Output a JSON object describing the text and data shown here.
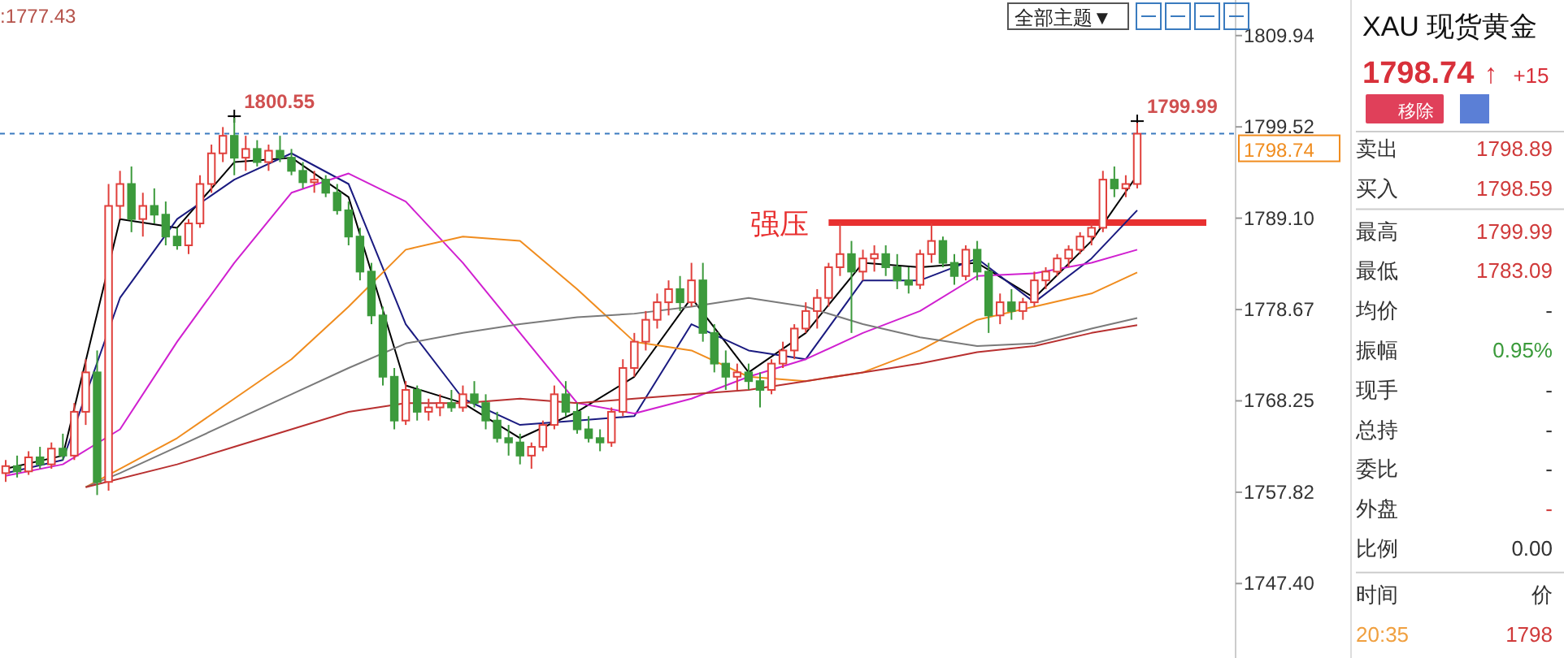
{
  "chart_data": [
    {
      "type": "candlestick",
      "categories": [
        null,
        null,
        null,
        null,
        null,
        null,
        null,
        null,
        null,
        null,
        null,
        null,
        null,
        null,
        null,
        null,
        null,
        null,
        null,
        null,
        null,
        null,
        null,
        null,
        null,
        null,
        null,
        null,
        null,
        null,
        null,
        null,
        null,
        null,
        null,
        null,
        null,
        null,
        null,
        null,
        null,
        null,
        null,
        null,
        null,
        null,
        null,
        null,
        null,
        null,
        null,
        null,
        null,
        null,
        null,
        null,
        null,
        null,
        null,
        null,
        null,
        null,
        null,
        null,
        null,
        null,
        null,
        null,
        null,
        null,
        null,
        null,
        null,
        null,
        null,
        null,
        null,
        null,
        null,
        null,
        null,
        null,
        null,
        null,
        null,
        null,
        null,
        null,
        null,
        null,
        null,
        null,
        null,
        null,
        null,
        null,
        null,
        null,
        null,
        null
      ],
      "ohlc": [
        [
          1760.0,
          1761.5,
          1759.0,
          1760.8
        ],
        [
          1760.8,
          1762.0,
          1759.5,
          1760.2
        ],
        [
          1760.2,
          1762.5,
          1759.8,
          1761.8
        ],
        [
          1761.8,
          1763.0,
          1760.5,
          1761.0
        ],
        [
          1761.0,
          1763.5,
          1760.5,
          1762.8
        ],
        [
          1762.8,
          1764.5,
          1761.5,
          1762.0
        ],
        [
          1762.0,
          1768.0,
          1761.5,
          1767.0
        ],
        [
          1767.0,
          1773.0,
          1765.5,
          1771.5
        ],
        [
          1771.5,
          1774.0,
          1757.5,
          1759.0
        ],
        [
          1759.0,
          1793.0,
          1758.0,
          1790.5
        ],
        [
          1790.5,
          1794.5,
          1789.0,
          1793.0
        ],
        [
          1793.0,
          1795.0,
          1787.5,
          1789.0
        ],
        [
          1789.0,
          1792.0,
          1787.0,
          1790.5
        ],
        [
          1790.5,
          1792.5,
          1788.5,
          1789.5
        ],
        [
          1789.5,
          1791.0,
          1786.0,
          1787.0
        ],
        [
          1787.0,
          1788.0,
          1785.5,
          1786.0
        ],
        [
          1786.0,
          1789.0,
          1785.0,
          1788.5
        ],
        [
          1788.5,
          1794.0,
          1788.0,
          1793.0
        ],
        [
          1793.0,
          1797.5,
          1792.0,
          1796.5
        ],
        [
          1796.5,
          1799.5,
          1795.5,
          1798.5
        ],
        [
          1798.5,
          1800.55,
          1794.0,
          1796.0
        ],
        [
          1796.0,
          1798.5,
          1794.5,
          1797.0
        ],
        [
          1797.0,
          1798.0,
          1795.0,
          1795.5
        ],
        [
          1795.5,
          1797.5,
          1794.5,
          1796.8
        ],
        [
          1796.8,
          1798.5,
          1795.5,
          1796.0
        ],
        [
          1796.0,
          1797.0,
          1794.0,
          1794.5
        ],
        [
          1794.5,
          1795.5,
          1792.5,
          1793.2
        ],
        [
          1793.2,
          1794.5,
          1792.0,
          1793.5
        ],
        [
          1793.5,
          1794.0,
          1791.5,
          1792.0
        ],
        [
          1792.0,
          1793.0,
          1789.5,
          1790.0
        ],
        [
          1790.0,
          1791.0,
          1786.0,
          1787.0
        ],
        [
          1787.0,
          1788.0,
          1782.0,
          1783.0
        ],
        [
          1783.0,
          1784.0,
          1777.0,
          1778.0
        ],
        [
          1778.0,
          1779.0,
          1770.0,
          1771.0
        ],
        [
          1771.0,
          1772.0,
          1765.0,
          1766.0
        ],
        [
          1766.0,
          1770.5,
          1765.5,
          1769.5
        ],
        [
          1769.5,
          1770.0,
          1766.0,
          1767.0
        ],
        [
          1767.0,
          1768.5,
          1766.0,
          1767.5
        ],
        [
          1767.5,
          1769.0,
          1766.5,
          1768.0
        ],
        [
          1768.0,
          1769.5,
          1767.0,
          1767.5
        ],
        [
          1767.5,
          1770.0,
          1767.0,
          1769.0
        ],
        [
          1769.0,
          1770.5,
          1767.5,
          1768.0
        ],
        [
          1768.0,
          1769.0,
          1765.0,
          1766.0
        ],
        [
          1766.0,
          1767.0,
          1763.5,
          1764.0
        ],
        [
          1764.0,
          1765.5,
          1762.0,
          1763.5
        ],
        [
          1763.5,
          1764.5,
          1761.0,
          1762.0
        ],
        [
          1762.0,
          1763.5,
          1760.5,
          1763.0
        ],
        [
          1763.0,
          1766.0,
          1762.5,
          1765.5
        ],
        [
          1765.5,
          1770.0,
          1765.0,
          1769.0
        ],
        [
          1769.0,
          1770.5,
          1766.5,
          1767.0
        ],
        [
          1767.0,
          1768.0,
          1764.5,
          1765.0
        ],
        [
          1765.0,
          1766.5,
          1763.5,
          1764.0
        ],
        [
          1764.0,
          1765.0,
          1762.5,
          1763.5
        ],
        [
          1763.5,
          1767.5,
          1763.0,
          1767.0
        ],
        [
          1767.0,
          1773.0,
          1766.5,
          1772.0
        ],
        [
          1772.0,
          1776.0,
          1771.0,
          1775.0
        ],
        [
          1775.0,
          1778.5,
          1774.0,
          1777.5
        ],
        [
          1777.5,
          1780.5,
          1776.5,
          1779.5
        ],
        [
          1779.5,
          1782.0,
          1778.0,
          1781.0
        ],
        [
          1781.0,
          1782.5,
          1778.5,
          1779.5
        ],
        [
          1779.5,
          1784.0,
          1779.0,
          1782.0
        ],
        [
          1782.0,
          1784.0,
          1775.0,
          1776.0
        ],
        [
          1776.0,
          1777.0,
          1771.5,
          1772.5
        ],
        [
          1772.5,
          1774.0,
          1769.5,
          1771.0
        ],
        [
          1771.0,
          1772.5,
          1769.5,
          1771.5
        ],
        [
          1771.5,
          1772.5,
          1769.5,
          1770.5
        ],
        [
          1770.5,
          1771.5,
          1767.5,
          1769.5
        ],
        [
          1769.5,
          1773.0,
          1769.0,
          1772.5
        ],
        [
          1772.5,
          1775.0,
          1772.0,
          1774.0
        ],
        [
          1774.0,
          1777.0,
          1773.0,
          1776.5
        ],
        [
          1776.5,
          1779.5,
          1776.0,
          1778.5
        ],
        [
          1778.5,
          1781.0,
          1776.5,
          1780.0
        ],
        [
          1780.0,
          1784.0,
          1779.0,
          1783.5
        ],
        [
          1783.5,
          1788.5,
          1782.5,
          1785.0
        ],
        [
          1785.0,
          1786.5,
          1776.0,
          1783.0
        ],
        [
          1783.0,
          1785.5,
          1782.0,
          1784.5
        ],
        [
          1784.5,
          1786.0,
          1783.0,
          1785.0
        ],
        [
          1785.0,
          1786.0,
          1782.5,
          1783.5
        ],
        [
          1783.5,
          1785.0,
          1781.0,
          1782.0
        ],
        [
          1782.0,
          1783.5,
          1780.5,
          1781.5
        ],
        [
          1781.5,
          1785.5,
          1781.0,
          1785.0
        ],
        [
          1785.0,
          1788.5,
          1784.0,
          1786.5
        ],
        [
          1786.5,
          1787.0,
          1783.5,
          1784.0
        ],
        [
          1784.0,
          1785.0,
          1781.5,
          1782.5
        ],
        [
          1782.5,
          1786.0,
          1782.0,
          1785.5
        ],
        [
          1785.5,
          1786.5,
          1782.0,
          1783.0
        ],
        [
          1783.0,
          1784.0,
          1776.0,
          1778.0
        ],
        [
          1778.0,
          1780.5,
          1777.0,
          1779.5
        ],
        [
          1779.5,
          1781.0,
          1777.5,
          1778.5
        ],
        [
          1778.5,
          1780.0,
          1777.5,
          1779.5
        ],
        [
          1779.5,
          1783.0,
          1779.0,
          1782.0
        ],
        [
          1782.0,
          1783.5,
          1781.0,
          1783.0
        ],
        [
          1783.0,
          1785.0,
          1782.5,
          1784.5
        ],
        [
          1784.5,
          1786.0,
          1783.5,
          1785.5
        ],
        [
          1785.5,
          1787.5,
          1785.0,
          1787.0
        ],
        [
          1787.0,
          1788.5,
          1786.0,
          1788.0
        ],
        [
          1788.0,
          1794.5,
          1787.5,
          1793.5
        ],
        [
          1793.5,
          1795.0,
          1791.5,
          1792.5
        ],
        [
          1792.5,
          1794.0,
          1791.5,
          1793.0
        ],
        [
          1793.0,
          1799.99,
          1792.5,
          1798.74
        ]
      ],
      "series": [
        {
          "type": "line",
          "color": "#000000",
          "values": [
            1760.5,
            null,
            null,
            null,
            null,
            1762,
            null,
            null,
            null,
            null,
            1789,
            null,
            null,
            null,
            null,
            1788,
            null,
            null,
            null,
            null,
            1795.5,
            null,
            null,
            null,
            null,
            1796,
            null,
            null,
            null,
            null,
            1791.5,
            null,
            null,
            null,
            null,
            1770,
            null,
            null,
            null,
            null,
            1768,
            null,
            null,
            null,
            null,
            1764,
            null,
            null,
            null,
            null,
            1767,
            null,
            null,
            null,
            null,
            1771,
            null,
            null,
            null,
            null,
            1780,
            null,
            null,
            null,
            null,
            1771.5,
            null,
            null,
            null,
            null,
            1776,
            null,
            null,
            null,
            null,
            1784,
            null,
            null,
            null,
            null,
            1783.5,
            null,
            null,
            null,
            null,
            1784,
            null,
            null,
            null,
            null,
            1780,
            null,
            null,
            null,
            null,
            1786.5,
            null,
            null,
            null,
            1794
          ]
        },
        {
          "type": "line",
          "color": "#1a1a80",
          "values": [
            1760,
            null,
            null,
            null,
            null,
            1761.5,
            null,
            null,
            null,
            null,
            1780,
            null,
            null,
            null,
            null,
            1789,
            null,
            null,
            null,
            null,
            1793.5,
            null,
            null,
            null,
            null,
            1796.5,
            null,
            null,
            null,
            null,
            1793,
            null,
            null,
            null,
            null,
            1777,
            null,
            null,
            null,
            null,
            1768.5,
            null,
            null,
            null,
            null,
            1765.5,
            null,
            null,
            null,
            null,
            1766,
            null,
            null,
            null,
            null,
            1766.5,
            null,
            null,
            null,
            null,
            1777,
            null,
            null,
            null,
            null,
            1774,
            null,
            null,
            null,
            null,
            1773,
            null,
            null,
            null,
            null,
            1782,
            null,
            null,
            null,
            null,
            1782,
            null,
            null,
            null,
            null,
            1784.5,
            null,
            null,
            null,
            null,
            1779.5,
            null,
            null,
            null,
            null,
            1784.5,
            null,
            null,
            null,
            1790
          ]
        },
        {
          "type": "line",
          "color": "#d020d0",
          "values": [
            1759.7,
            null,
            null,
            null,
            null,
            1761,
            null,
            null,
            null,
            null,
            1765,
            null,
            null,
            null,
            null,
            1775,
            null,
            null,
            null,
            null,
            1784,
            null,
            null,
            null,
            null,
            1792,
            null,
            null,
            null,
            null,
            1794.2,
            null,
            null,
            null,
            null,
            1791,
            null,
            null,
            null,
            null,
            1784,
            null,
            null,
            null,
            null,
            1776,
            null,
            null,
            null,
            null,
            1768,
            null,
            null,
            null,
            null,
            1766.8,
            null,
            null,
            null,
            null,
            1768.5,
            null,
            null,
            null,
            null,
            1771,
            null,
            null,
            null,
            null,
            1773,
            null,
            null,
            null,
            null,
            1776,
            null,
            null,
            null,
            null,
            1778.5,
            null,
            null,
            null,
            null,
            1782.5,
            null,
            null,
            null,
            null,
            1782.8,
            null,
            null,
            null,
            null,
            1784,
            null,
            null,
            null,
            1785.5
          ]
        },
        {
          "type": "line",
          "color": "#f08c1e",
          "values": [
            null,
            null,
            null,
            null,
            null,
            null,
            null,
            1758.4,
            null,
            null,
            1760.5,
            null,
            null,
            null,
            null,
            1764,
            null,
            null,
            null,
            null,
            1768.5,
            null,
            null,
            null,
            null,
            1773,
            null,
            null,
            null,
            null,
            1779,
            null,
            null,
            null,
            null,
            1785.5,
            null,
            null,
            null,
            null,
            1787,
            null,
            null,
            null,
            null,
            1786.5,
            null,
            null,
            null,
            null,
            1781,
            null,
            null,
            null,
            null,
            1775,
            null,
            null,
            null,
            null,
            1774,
            null,
            null,
            null,
            null,
            1771,
            null,
            null,
            null,
            null,
            1770.5,
            null,
            null,
            null,
            null,
            1771.5,
            null,
            null,
            null,
            null,
            1774,
            null,
            null,
            null,
            null,
            1777.5,
            null,
            null,
            null,
            null,
            1779,
            null,
            null,
            null,
            null,
            1780.5,
            null,
            null,
            null,
            1782.9
          ]
        },
        {
          "type": "line",
          "color": "#7a7a7a",
          "values": [
            null,
            null,
            null,
            null,
            null,
            null,
            null,
            1758.4,
            null,
            null,
            1760,
            null,
            null,
            null,
            null,
            1763,
            null,
            null,
            null,
            null,
            1766,
            null,
            null,
            null,
            null,
            1769,
            null,
            null,
            null,
            null,
            1772,
            null,
            null,
            null,
            null,
            1774.8,
            null,
            null,
            null,
            null,
            1776,
            null,
            null,
            null,
            null,
            1777,
            null,
            null,
            null,
            null,
            1777.8,
            null,
            null,
            null,
            null,
            1778.2,
            null,
            null,
            null,
            null,
            1779,
            null,
            null,
            null,
            null,
            1780,
            null,
            null,
            null,
            null,
            1779,
            null,
            null,
            null,
            null,
            1777,
            null,
            null,
            null,
            null,
            1775.5,
            null,
            null,
            null,
            null,
            1774.5,
            null,
            null,
            null,
            null,
            1774.8,
            null,
            null,
            null,
            null,
            1776.5,
            null,
            null,
            null,
            1777.7
          ]
        },
        {
          "type": "line",
          "color": "#b83030",
          "values": [
            null,
            null,
            null,
            null,
            null,
            null,
            null,
            1758.4,
            null,
            null,
            null,
            null,
            null,
            null,
            null,
            1761,
            null,
            null,
            null,
            null,
            1763,
            null,
            null,
            null,
            null,
            1765,
            null,
            null,
            null,
            null,
            1767,
            null,
            null,
            null,
            null,
            1768,
            null,
            null,
            null,
            null,
            1768,
            null,
            null,
            null,
            null,
            1768.5,
            null,
            null,
            null,
            null,
            1768,
            null,
            null,
            null,
            null,
            1768.5,
            null,
            null,
            null,
            null,
            1769,
            null,
            null,
            null,
            null,
            1769.5,
            null,
            null,
            null,
            null,
            1770.5,
            null,
            null,
            null,
            null,
            1771.5,
            null,
            null,
            null,
            null,
            1772.5,
            null,
            null,
            null,
            null,
            1773.8,
            null,
            null,
            null,
            null,
            1774.5,
            null,
            null,
            null,
            null,
            1776,
            null,
            null,
            null,
            1776.9
          ]
        }
      ],
      "ylim": [
        1738.9,
        1814.0
      ],
      "yticks": [
        {
          "value": 1809.94,
          "label": "1809.94"
        },
        {
          "value": 1799.52,
          "label": "1799.52"
        },
        {
          "value": 1789.1,
          "label": "1789.10"
        },
        {
          "value": 1778.67,
          "label": "1778.67"
        },
        {
          "value": 1768.25,
          "label": "1768.25"
        },
        {
          "value": 1757.82,
          "label": "1757.82"
        },
        {
          "value": 1747.4,
          "label": "1747.40"
        }
      ],
      "ref_lines": [
        {
          "axis": "y",
          "value": 1798.74,
          "label": "1798.74",
          "color": "#3a7bbf",
          "line_style": "dashed"
        },
        {
          "axis": "y",
          "value": 1788.6,
          "label": "强压",
          "color": "#e83030",
          "line_style": "solid"
        }
      ],
      "annotations": [
        "1800.55",
        "1799.99",
        ":1777.43",
        "全部主题▼"
      ],
      "grid": false,
      "tick_labels": "y"
    },
    {
      "type": "other",
      "title": "XAU 现货黄金",
      "annotations": [
        "1798.74",
        "↑",
        "+15",
        "移除",
        "卖出",
        "1798.89",
        "买入",
        "1798.59",
        "最高",
        "1799.99",
        "最低",
        "1783.09",
        "均价",
        "-",
        "振幅",
        "0.95%",
        "现手",
        "-",
        "总持",
        "-",
        "委比",
        "-",
        "外盘",
        "-",
        "比例",
        "0.00",
        "时间",
        "价",
        "20:35",
        "1798"
      ],
      "colors": [
        "#d03a3a",
        "#d03a3a",
        "#d03a3a",
        "#d03a3a",
        "#333333",
        "#3a9a3a",
        "#333333",
        "#333333",
        "#333333",
        "#d03a3a",
        "#333333",
        "#333333",
        "#d03a3a"
      ]
    }
  ]
}
